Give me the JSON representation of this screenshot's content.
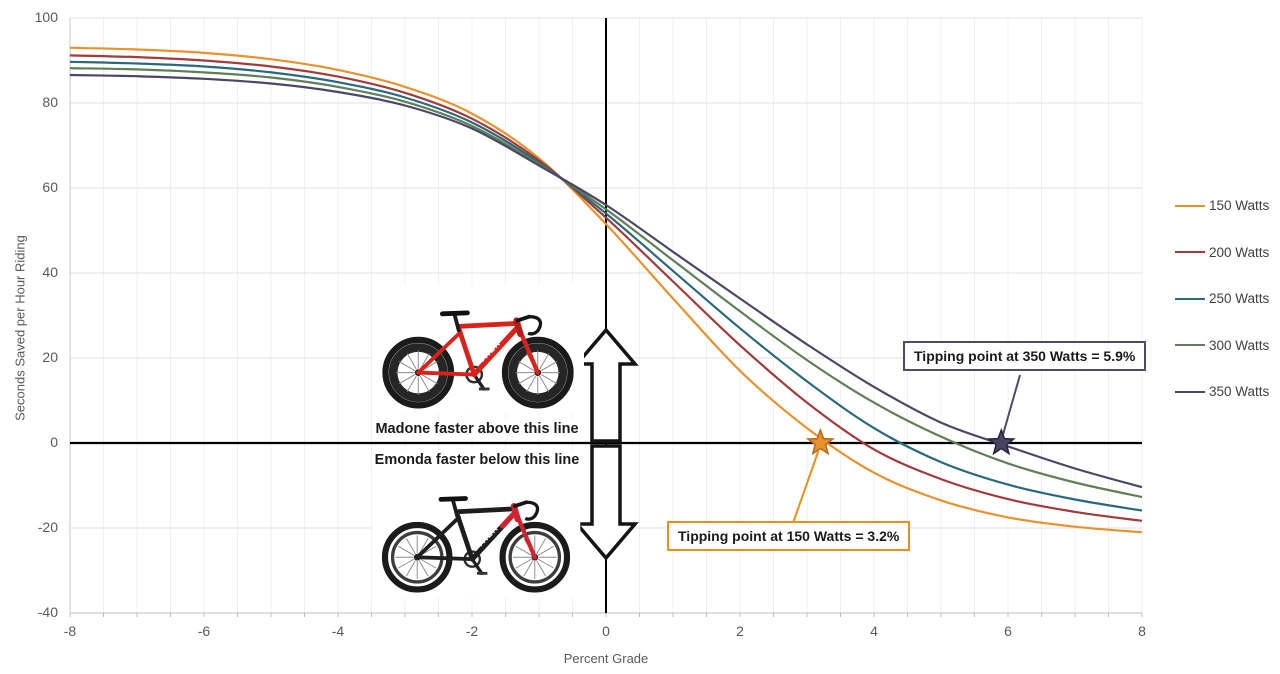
{
  "chart_data": {
    "type": "line",
    "title": "",
    "xlabel": "Percent Grade",
    "ylabel": "Seconds Saved per Hour Riding",
    "xlim": [
      -8,
      8
    ],
    "ylim": [
      -40,
      100
    ],
    "x_ticks": [
      -8,
      -6,
      -4,
      -2,
      0,
      2,
      4,
      6,
      8
    ],
    "y_ticks": [
      100,
      80,
      60,
      40,
      20,
      0,
      -20,
      -40
    ],
    "grid": true,
    "legend_position": "right",
    "x": [
      -8,
      -7,
      -6,
      -5,
      -4,
      -3,
      -2,
      -1,
      0,
      1,
      2,
      3,
      4,
      5,
      6,
      7,
      8
    ],
    "series": [
      {
        "name": "150 Watts",
        "color": "#E8922D",
        "zero_cross_grade": 3.2,
        "values": [
          93,
          92.6,
          91.8,
          90.3,
          87.8,
          83.8,
          77.5,
          67,
          51.5,
          34,
          17,
          3.5,
          -7,
          -13.5,
          -17.5,
          -19.7,
          -21
        ]
      },
      {
        "name": "200 Watts",
        "color": "#A23B3B",
        "zero_cross_grade": 3.85,
        "values": [
          91.2,
          90.8,
          90,
          88.6,
          86.2,
          82.4,
          76.3,
          66.5,
          53,
          38,
          23,
          9.5,
          -1.5,
          -8.5,
          -13.2,
          -16.2,
          -18.3
        ]
      },
      {
        "name": "250 Watts",
        "color": "#28697E",
        "zero_cross_grade": 4.45,
        "values": [
          89.7,
          89.3,
          88.6,
          87.2,
          84.9,
          81.3,
          75.4,
          66,
          54,
          40.5,
          27,
          14.5,
          3.5,
          -4.5,
          -9.8,
          -13.3,
          -15.9
        ]
      },
      {
        "name": "300 Watts",
        "color": "#5F7F57",
        "zero_cross_grade": 5.2,
        "values": [
          88.2,
          87.9,
          87.2,
          86,
          83.8,
          80.3,
          74.6,
          65.6,
          55,
          43,
          31,
          19.5,
          9.5,
          1.5,
          -4.8,
          -9.3,
          -12.7
        ]
      },
      {
        "name": "350 Watts",
        "color": "#4B4767",
        "zero_cross_grade": 5.9,
        "values": [
          86.6,
          86.3,
          85.7,
          84.6,
          82.6,
          79.4,
          74,
          65.3,
          56,
          45,
          34,
          23.2,
          13.2,
          4.8,
          -0.8,
          -6,
          -10.4
        ]
      }
    ]
  },
  "annotations": {
    "tipping_150": {
      "label": "Tipping point at 150 Watts = 3.2%",
      "grade": 3.2,
      "seconds": 0,
      "accent": "#E8901E"
    },
    "tipping_350": {
      "label": "Tipping point at 350 Watts = 5.9%",
      "grade": 5.9,
      "seconds": 0,
      "accent": "#4F4A6B"
    },
    "above_line_label": "Madone faster above this line",
    "below_line_label": "Emonda faster below this line"
  },
  "bikes": {
    "logo": "TREK"
  }
}
